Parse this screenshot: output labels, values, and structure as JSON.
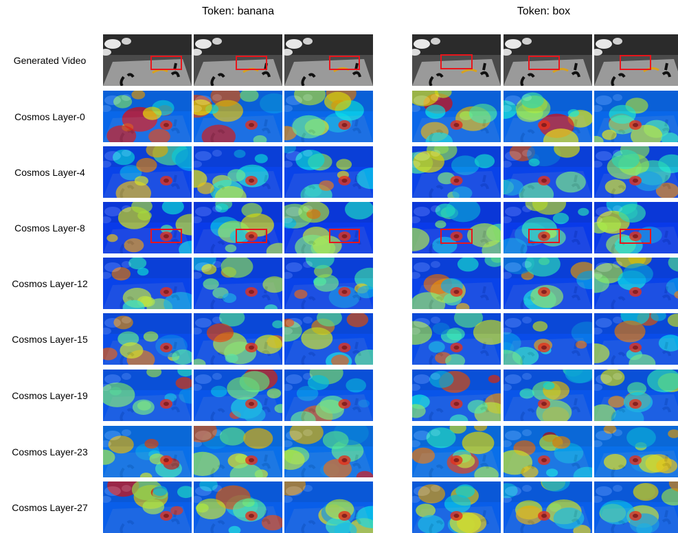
{
  "columns": [
    {
      "title": "Token: banana"
    },
    {
      "title": "Token: box"
    }
  ],
  "rows": [
    {
      "label": "Generated Video"
    },
    {
      "label": "Cosmos Layer-0"
    },
    {
      "label": "Cosmos Layer-4"
    },
    {
      "label": "Cosmos Layer-8"
    },
    {
      "label": "Cosmos Layer-12"
    },
    {
      "label": "Cosmos Layer-15"
    },
    {
      "label": "Cosmos Layer-19"
    },
    {
      "label": "Cosmos Layer-23"
    },
    {
      "label": "Cosmos Layer-27"
    }
  ],
  "frames_per_token": 3,
  "highlight_color": "#e8151b"
}
